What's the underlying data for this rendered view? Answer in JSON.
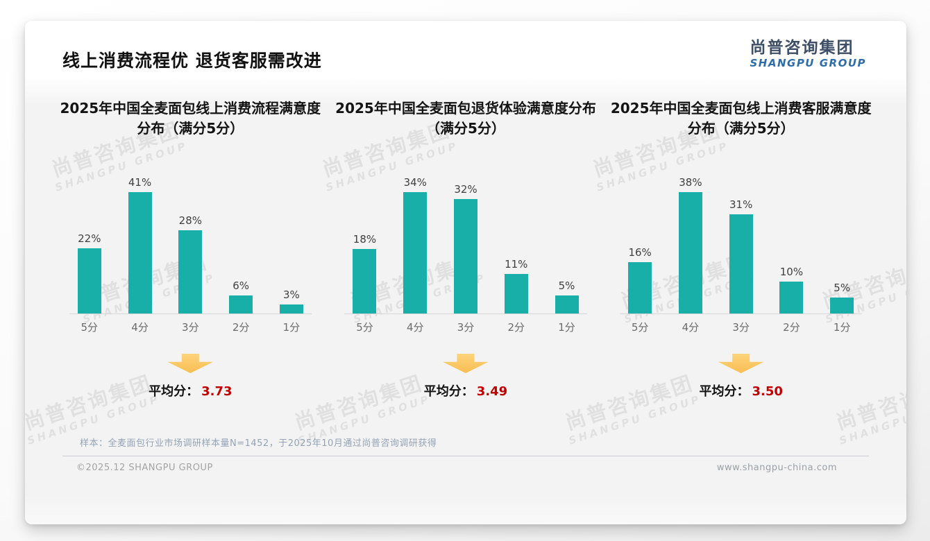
{
  "page": {
    "title": "线上消费流程优 退货客服需改进",
    "logo": {
      "cn": "尚普咨询集团",
      "en": "SHANGPU GROUP"
    },
    "watermark": {
      "cn": "尚普咨询集团",
      "en": "SHANGPU GROUP"
    },
    "footnote": "样本：全麦面包行业市场调研样本量N=1452，于2025年10月通过尚普咨询调研获得",
    "footer_left": "©2025.12 SHANGPU GROUP",
    "footer_right": "www.shangpu-china.com"
  },
  "colors": {
    "bar": "#18afa8",
    "avg_value": "#c00000",
    "arrow": "#f8bd52",
    "logo_cn": "#3d4e66",
    "logo_en": "#2f6da8"
  },
  "chart_data": [
    {
      "type": "bar",
      "title": "2025年中国全麦面包线上消费流程满意度分布（满分5分）",
      "categories": [
        "5分",
        "4分",
        "3分",
        "2分",
        "1分"
      ],
      "values": [
        22,
        41,
        28,
        6,
        3
      ],
      "value_labels": [
        "22%",
        "41%",
        "28%",
        "6%",
        "3%"
      ],
      "ylim": [
        0,
        45
      ],
      "grid": false,
      "legend": "none",
      "avg_label": "平均分：",
      "avg_value": "3.73"
    },
    {
      "type": "bar",
      "title": "2025年中国全麦面包退货体验满意度分布（满分5分）",
      "categories": [
        "5分",
        "4分",
        "3分",
        "2分",
        "1分"
      ],
      "values": [
        18,
        34,
        32,
        11,
        5
      ],
      "value_labels": [
        "18%",
        "34%",
        "32%",
        "11%",
        "5%"
      ],
      "ylim": [
        0,
        40
      ],
      "grid": false,
      "legend": "none",
      "avg_label": "平均分：",
      "avg_value": "3.49"
    },
    {
      "type": "bar",
      "title": "2025年中国全麦面包线上消费客服满意度分布（满分5分）",
      "categories": [
        "5分",
        "4分",
        "3分",
        "2分",
        "1分"
      ],
      "values": [
        16,
        38,
        31,
        10,
        5
      ],
      "value_labels": [
        "16%",
        "38%",
        "31%",
        "10%",
        "5%"
      ],
      "ylim": [
        0,
        42
      ],
      "grid": false,
      "legend": "none",
      "avg_label": "平均分：",
      "avg_value": "3.50"
    }
  ]
}
